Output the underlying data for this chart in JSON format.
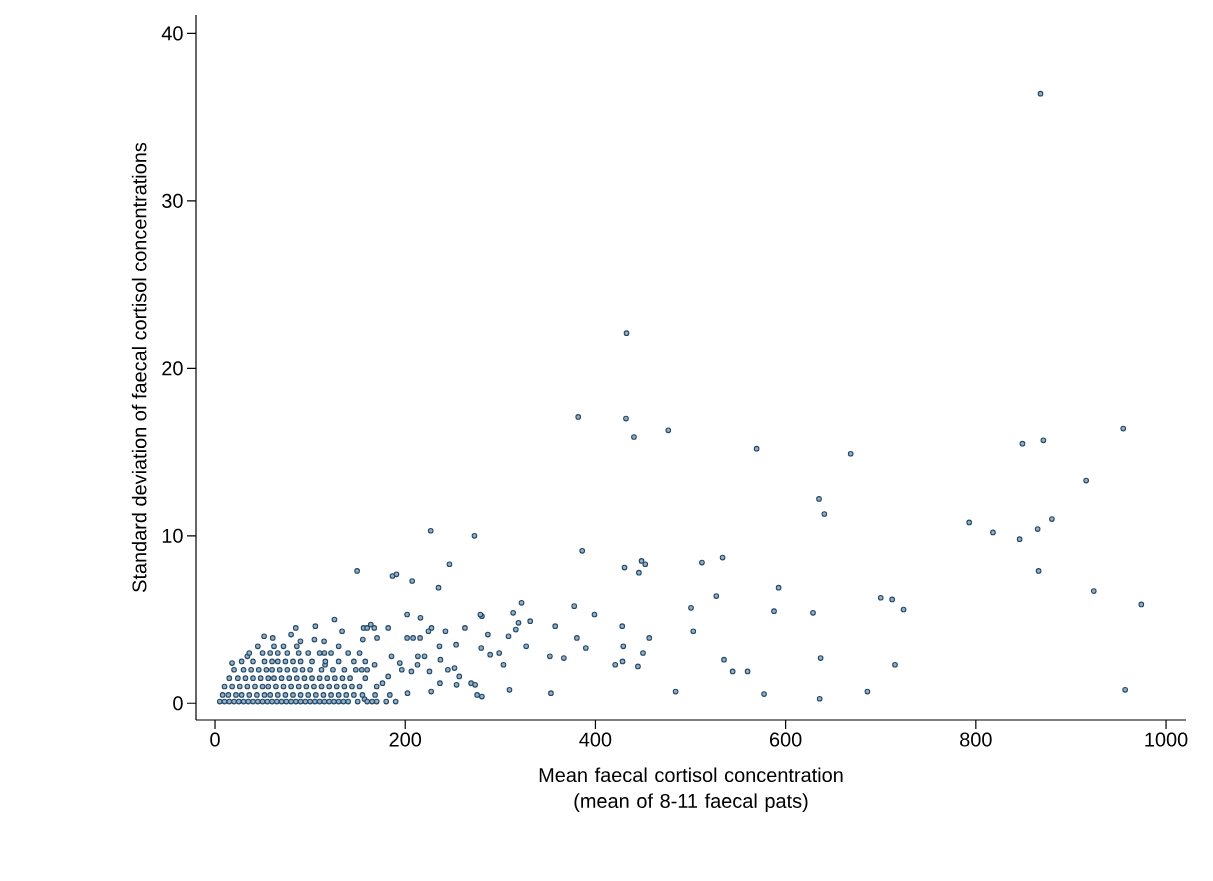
{
  "chart_data": {
    "type": "scatter",
    "xlabel": "Mean faecal cortisol concentration (mean of 8-11 faecal pats)",
    "ylabel": "Standard deviation of faecal cortisol concentrations",
    "xlim": [
      -20,
      1021
    ],
    "ylim": [
      -1,
      41.1
    ],
    "xticks": [
      0,
      200,
      400,
      600,
      800,
      1000
    ],
    "yticks": [
      0,
      10,
      20,
      30,
      40
    ],
    "grid": false,
    "marker": "circle",
    "series": [
      {
        "color": "#1f4a6e",
        "x": [
          868,
          849,
          871,
          955,
          916,
          793,
          818,
          846,
          865,
          880,
          866,
          924,
          974,
          700,
          712,
          724,
          715,
          686,
          957,
          432.7,
          381.9,
          432.1,
          440.5,
          476.6,
          569.5,
          668.4,
          635.1,
          640.7,
          386.1,
          430.6,
          448.5,
          452.4,
          445.7,
          512,
          533.7,
          592.6,
          527.1,
          500.5,
          587.8,
          628.8,
          502.9,
          636.8,
          535.2,
          544.3,
          560,
          484.3,
          577.3,
          635.8,
          377.7,
          399,
          428.2,
          429.3,
          456.6,
          450,
          420.8,
          428.5,
          444.7,
          380.5,
          389.9,
          357.7,
          352.1,
          366.8,
          353.2,
          322.3,
          313.5,
          331.4,
          319.1,
          316.3,
          308.6,
          286.9,
          327.2,
          298.8,
          289.3,
          303.3,
          309.6,
          279.9,
          280.6,
          280.6,
          226.8,
          272.8,
          149.4,
          186.6,
          190.8,
          207.3,
          246.5,
          235,
          202,
          216,
          227.6,
          262.8,
          279,
          125.6,
          105.5,
          84.9,
          51.6,
          60.7,
          80,
          89.8,
          104.5,
          114.7,
          133.6,
          156.2,
          160,
          163.8,
          167.4,
          182.1,
          155.4,
          170.4,
          202,
          208.3,
          215.6,
          224.4,
          236,
          242.3,
          253.5,
          17.9,
          34,
          237,
          225.5,
          244.8,
          251.8,
          256.8,
          236.5,
          254,
          227.3,
          202.4,
          206.5,
          185.6,
          183.8,
          165.2,
          157.2,
          168.3,
          154.3,
          167.8,
          176.1,
          182.1,
          196.4,
          213.3,
          220.3,
          212.9,
          194.3,
          269.3,
          273.5,
          275.6,
          115,
          115.7,
          5,
          10,
          15,
          20,
          25,
          30,
          35,
          40,
          45,
          50,
          55,
          60,
          65,
          70,
          75,
          80,
          85,
          90,
          95,
          100,
          105,
          110,
          115,
          120,
          125,
          130,
          135,
          140,
          150,
          160,
          170,
          180,
          190,
          8,
          14,
          22,
          28,
          36,
          44,
          52,
          58,
          66,
          74,
          82,
          90,
          98,
          106,
          114,
          122,
          130,
          138,
          146,
          155,
          10,
          18,
          26,
          34,
          42,
          50,
          56,
          64,
          72,
          80,
          88,
          96,
          104,
          112,
          120,
          128,
          136,
          144,
          152,
          170,
          15,
          24,
          32,
          40,
          48,
          56,
          62,
          70,
          78,
          86,
          94,
          102,
          110,
          118,
          126,
          134,
          142,
          158,
          20,
          30,
          38,
          46,
          54,
          60,
          68,
          76,
          84,
          92,
          100,
          112,
          124,
          136,
          148,
          160,
          28,
          40,
          52,
          60,
          66,
          74,
          82,
          90,
          102,
          116,
          130,
          146,
          158,
          36,
          50,
          58,
          66,
          76,
          88,
          98,
          110,
          122,
          140,
          152,
          45,
          62,
          72,
          86,
          130
        ],
        "values": [
          36.4,
          15.5,
          15.7,
          16.4,
          13.3,
          10.8,
          10.2,
          9.8,
          10.4,
          11.0,
          7.9,
          6.7,
          5.9,
          6.3,
          6.2,
          5.6,
          2.3,
          0.7,
          0.8,
          22.1,
          17.1,
          17.0,
          15.9,
          16.3,
          15.2,
          14.9,
          12.2,
          11.3,
          9.1,
          8.1,
          8.5,
          8.3,
          7.8,
          8.4,
          8.7,
          6.9,
          6.4,
          5.7,
          5.5,
          5.4,
          4.3,
          2.7,
          2.6,
          1.9,
          1.9,
          0.7,
          0.55,
          0.27,
          5.8,
          5.3,
          4.6,
          3.4,
          3.9,
          3.0,
          2.3,
          2.5,
          2.2,
          3.9,
          3.3,
          4.6,
          2.8,
          2.7,
          0.6,
          6.0,
          5.4,
          4.9,
          4.8,
          4.4,
          4.0,
          4.1,
          3.4,
          3.0,
          2.9,
          2.3,
          0.8,
          3.3,
          5.2,
          0.4,
          10.3,
          10.0,
          7.9,
          7.6,
          7.7,
          7.3,
          8.3,
          6.9,
          5.3,
          5.1,
          4.5,
          4.5,
          5.3,
          5.0,
          4.6,
          4.5,
          4.0,
          3.9,
          4.1,
          3.7,
          3.8,
          3.7,
          4.3,
          4.5,
          4.5,
          4.7,
          4.5,
          4.5,
          3.8,
          3.9,
          3.9,
          3.9,
          3.9,
          4.3,
          3.4,
          4.3,
          3.5,
          2.4,
          2.8,
          2.6,
          1.9,
          2.0,
          2.1,
          1.6,
          1.2,
          1.1,
          0.7,
          0.6,
          1.9,
          2.8,
          0.5,
          0.1,
          0.25,
          0.5,
          2.0,
          2.3,
          1.2,
          1.6,
          2.0,
          2.8,
          2.8,
          2.3,
          2.4,
          1.2,
          1.1,
          0.5,
          3.0,
          2.3,
          0.1,
          0.1,
          0.1,
          0.1,
          0.1,
          0.1,
          0.1,
          0.1,
          0.1,
          0.1,
          0.1,
          0.1,
          0.1,
          0.1,
          0.1,
          0.1,
          0.1,
          0.1,
          0.1,
          0.1,
          0.1,
          0.1,
          0.1,
          0.1,
          0.1,
          0.1,
          0.1,
          0.1,
          0.1,
          0.1,
          0.1,
          0.1,
          0.1,
          0.5,
          0.5,
          0.5,
          0.5,
          0.5,
          0.5,
          0.5,
          0.5,
          0.5,
          0.5,
          0.5,
          0.5,
          0.5,
          0.5,
          0.5,
          0.5,
          0.5,
          0.5,
          0.5,
          0.5,
          1.0,
          1.0,
          1.0,
          1.0,
          1.0,
          1.0,
          1.0,
          1.0,
          1.0,
          1.0,
          1.0,
          1.0,
          1.0,
          1.0,
          1.0,
          1.0,
          1.0,
          1.0,
          1.0,
          1.0,
          1.5,
          1.5,
          1.5,
          1.5,
          1.5,
          1.5,
          1.5,
          1.5,
          1.5,
          1.5,
          1.5,
          1.5,
          1.5,
          1.5,
          1.5,
          1.5,
          1.5,
          1.5,
          2.0,
          2.0,
          2.0,
          2.0,
          2.0,
          2.0,
          2.0,
          2.0,
          2.0,
          2.0,
          2.0,
          2.0,
          2.0,
          2.0,
          2.0,
          2.0,
          2.5,
          2.5,
          2.5,
          2.5,
          2.5,
          2.5,
          2.5,
          2.5,
          2.5,
          2.5,
          2.5,
          2.5,
          2.5,
          3.0,
          3.0,
          3.0,
          3.0,
          3.0,
          3.0,
          3.0,
          3.0,
          3.0,
          3.0,
          3.0,
          3.4,
          3.4,
          3.4,
          3.4,
          3.4
        ]
      }
    ]
  }
}
